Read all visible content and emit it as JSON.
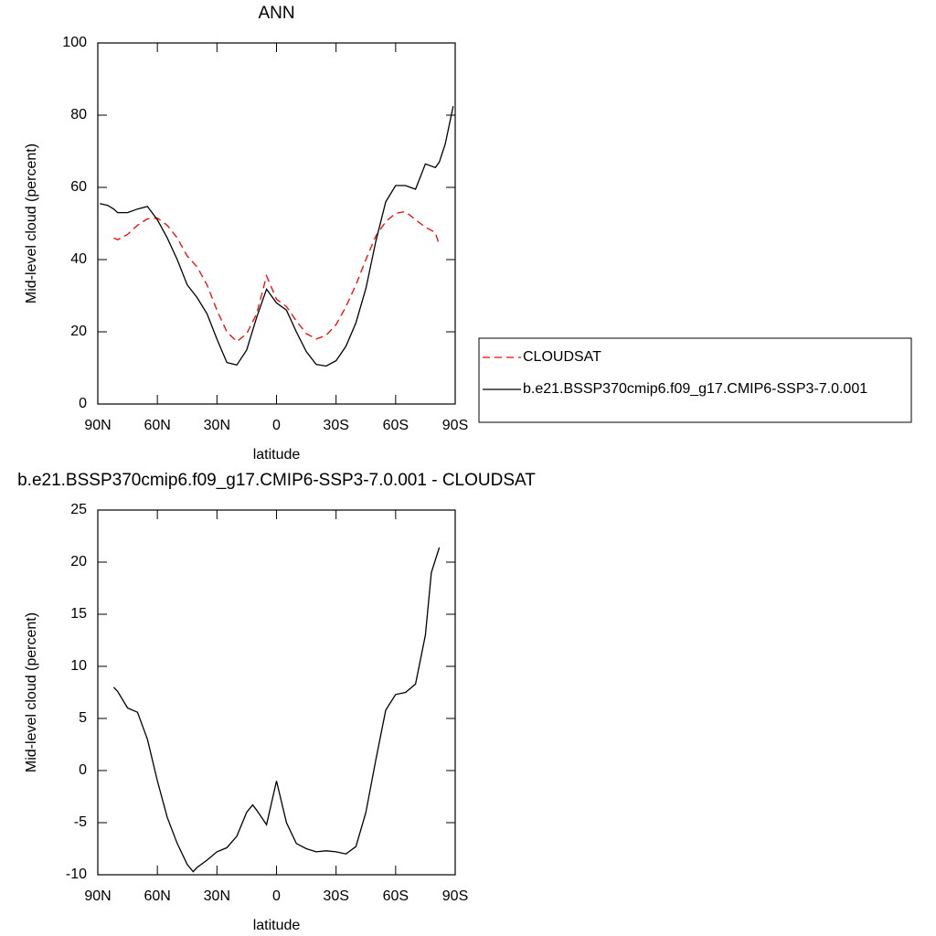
{
  "chart_data": [
    {
      "type": "line",
      "title": "ANN",
      "xlabel": "latitude",
      "ylabel": "Mid-level cloud (percent)",
      "x": [
        89,
        85,
        82,
        80,
        75,
        70,
        65,
        60,
        55,
        50,
        45,
        40,
        35,
        30,
        25,
        20,
        15,
        10,
        5,
        0,
        -5,
        -10,
        -15,
        -20,
        -25,
        -30,
        -35,
        -40,
        -45,
        -50,
        -55,
        -60,
        -65,
        -70,
        -75,
        -80,
        -82,
        -85,
        -89
      ],
      "xlim": [
        90,
        -90
      ],
      "xticks": [
        {
          "value": 90,
          "label": "90N"
        },
        {
          "value": 60,
          "label": "60N"
        },
        {
          "value": 30,
          "label": "30N"
        },
        0,
        {
          "value": -30,
          "label": "30S"
        },
        {
          "value": -60,
          "label": "60S"
        },
        {
          "value": -90,
          "label": "90S"
        }
      ],
      "ylim": [
        0,
        100
      ],
      "yticks": [
        0,
        20,
        40,
        60,
        80,
        100
      ],
      "legend": "right",
      "series": [
        {
          "name": "CLOUDSAT",
          "color": "#ff0000",
          "dashed": true,
          "values": [
            null,
            null,
            46,
            45.5,
            47,
            49.5,
            51.3,
            51.5,
            49.5,
            46,
            41,
            38,
            33,
            26,
            20,
            17.3,
            19.5,
            25,
            35.5,
            29,
            27,
            23,
            19.5,
            18,
            19,
            22,
            27,
            33,
            40,
            46.5,
            50.5,
            52.8,
            53.3,
            51,
            49,
            47.5,
            44,
            null,
            null
          ]
        },
        {
          "name": "b.e21.BSSP370cmip6.f09_g17.CMIP6-SSP3-7.0.001",
          "color": "#000000",
          "dashed": false,
          "values": [
            55.5,
            55,
            54,
            53,
            53,
            54,
            54.7,
            51,
            46,
            40,
            33,
            29.5,
            25,
            18,
            11.5,
            10.8,
            15,
            24,
            31.8,
            28,
            26,
            20,
            14.5,
            11,
            10.5,
            12,
            16,
            22.5,
            32,
            45,
            56,
            60.5,
            60.5,
            59.5,
            66.5,
            65.5,
            67,
            72,
            82.5
          ]
        }
      ]
    },
    {
      "type": "line",
      "title": "b.e21.BSSP370cmip6.f09_g17.CMIP6-SSP3-7.0.001 - CLOUDSAT",
      "xlabel": "latitude",
      "ylabel": "Mid-level cloud (percent)",
      "x": [
        82,
        80,
        75,
        70,
        65,
        60,
        55,
        50,
        45,
        42,
        40,
        35,
        30,
        25,
        20,
        15,
        12,
        10,
        5,
        0,
        -5,
        -10,
        -15,
        -20,
        -25,
        -30,
        -35,
        -40,
        -45,
        -50,
        -55,
        -60,
        -65,
        -70,
        -75,
        -78,
        -82
      ],
      "xlim": [
        90,
        -90
      ],
      "xticks": [
        {
          "value": 90,
          "label": "90N"
        },
        {
          "value": 60,
          "label": "60N"
        },
        {
          "value": 30,
          "label": "30N"
        },
        0,
        {
          "value": -30,
          "label": "30S"
        },
        {
          "value": -60,
          "label": "60S"
        },
        {
          "value": -90,
          "label": "90S"
        }
      ],
      "ylim": [
        -10,
        25
      ],
      "yticks": [
        -10,
        -5,
        0,
        5,
        10,
        15,
        20,
        25
      ],
      "series": [
        {
          "color": "#000000",
          "dashed": false,
          "values": [
            8,
            7.6,
            6,
            5.6,
            3,
            -1,
            -4.5,
            -7,
            -9,
            -9.7,
            -9.3,
            -8.6,
            -7.8,
            -7.4,
            -6.3,
            -4,
            -3.3,
            -3.8,
            -5.2,
            -1,
            -5,
            -7,
            -7.5,
            -7.8,
            -7.7,
            -7.8,
            -8,
            -7.3,
            -4,
            1,
            5.8,
            7.3,
            7.5,
            8.3,
            13,
            19,
            21.4
          ]
        }
      ]
    }
  ]
}
